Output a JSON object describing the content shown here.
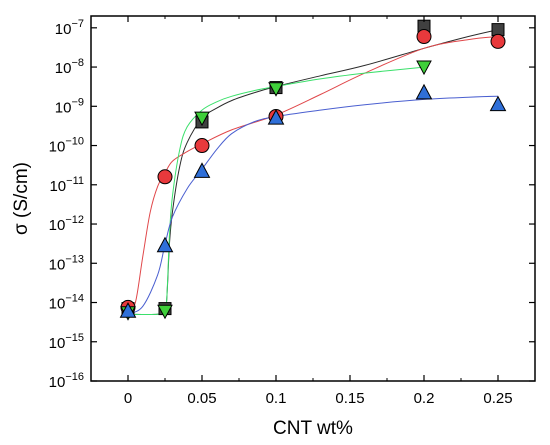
{
  "chart_data": {
    "type": "scatter",
    "title": "",
    "xlabel": "CNT wt%",
    "ylabel": "σ (S/cm)",
    "xlim": [
      -0.025,
      0.275
    ],
    "ylim": [
      1e-16,
      2e-07
    ],
    "y_scale": "log",
    "x_ticks": [
      0,
      0.05,
      0.1,
      0.15,
      0.2,
      0.25
    ],
    "x_tick_labels": [
      "0",
      "0.05",
      "0.1",
      "0.15",
      "0.2",
      "0.25"
    ],
    "y_ticks": [
      {
        "value": 1e-16,
        "base": "10",
        "exp": "−16"
      },
      {
        "value": 1e-15,
        "base": "10",
        "exp": "−15"
      },
      {
        "value": 1e-14,
        "base": "10",
        "exp": "−14"
      },
      {
        "value": 1e-13,
        "base": "10",
        "exp": "−13"
      },
      {
        "value": 1e-12,
        "base": "10",
        "exp": "−12"
      },
      {
        "value": 1e-11,
        "base": "10",
        "exp": "−11"
      },
      {
        "value": 1e-10,
        "base": "10",
        "exp": "−10"
      },
      {
        "value": 1e-09,
        "base": "10",
        "exp": "−9"
      },
      {
        "value": 1e-08,
        "base": "10",
        "exp": "−8"
      },
      {
        "value": 1e-07,
        "base": "10",
        "exp": "−7"
      }
    ],
    "grid": false,
    "legend": "none",
    "series": [
      {
        "marker": "square",
        "color": "#404040",
        "x": [
          0,
          0.025,
          0.05,
          0.1,
          0.2,
          0.25
        ],
        "y": [
          7e-15,
          7e-15,
          4e-10,
          3e-09,
          1.1e-07,
          9e-08
        ],
        "fit_color": "#2b2b2b",
        "fit_x": [
          0,
          0.02,
          0.024,
          0.026,
          0.028,
          0.03,
          0.035,
          0.04,
          0.05,
          0.06,
          0.07,
          0.085,
          0.1,
          0.13,
          0.16,
          0.2,
          0.23,
          0.25
        ],
        "fit_y": [
          5e-15,
          5e-15,
          6e-15,
          1e-14,
          3e-13,
          2e-12,
          3e-11,
          1.2e-10,
          5e-10,
          9e-10,
          1.4e-09,
          2.2e-09,
          3.2e-09,
          6e-09,
          1.1e-08,
          3e-08,
          6e-08,
          9e-08
        ]
      },
      {
        "marker": "circle",
        "color": "#e8393c",
        "x": [
          0,
          0.025,
          0.05,
          0.1,
          0.2,
          0.25
        ],
        "y": [
          7.5e-15,
          1.6e-11,
          1e-10,
          5.5e-10,
          6e-08,
          4.5e-08
        ],
        "fit_color": "#e0474a",
        "fit_x": [
          0,
          0.005,
          0.01,
          0.015,
          0.02,
          0.025,
          0.03,
          0.04,
          0.05,
          0.07,
          0.1,
          0.13,
          0.16,
          0.2,
          0.23,
          0.25
        ],
        "fit_y": [
          6e-15,
          1e-14,
          1.5e-13,
          2e-12,
          9e-12,
          2e-11,
          4e-11,
          7e-11,
          1.1e-10,
          2.5e-10,
          6e-10,
          2e-09,
          7e-09,
          3e-08,
          5e-08,
          6e-08
        ]
      },
      {
        "marker": "triangle-down",
        "color": "#3fcf3a",
        "x": [
          0,
          0.025,
          0.05,
          0.1,
          0.2
        ],
        "y": [
          5.5e-15,
          6e-15,
          5e-10,
          2.8e-09,
          1e-08
        ],
        "fit_color": "#3be06b",
        "fit_x": [
          0,
          0.02,
          0.024,
          0.026,
          0.028,
          0.03,
          0.035,
          0.04,
          0.05,
          0.06,
          0.07,
          0.085,
          0.1,
          0.13,
          0.16,
          0.2
        ],
        "fit_y": [
          5e-15,
          5e-15,
          6e-15,
          1e-14,
          5e-13,
          5e-12,
          8e-11,
          3e-10,
          8e-10,
          1.3e-09,
          1.8e-09,
          2.5e-09,
          3.2e-09,
          5e-09,
          7e-09,
          1e-08
        ]
      },
      {
        "marker": "triangle-up",
        "color": "#2f6fd8",
        "x": [
          0,
          0.025,
          0.05,
          0.1,
          0.2,
          0.25
        ],
        "y": [
          6e-15,
          2.8e-13,
          2.2e-11,
          5e-10,
          2.2e-09,
          1.1e-09
        ],
        "fit_color": "#4a5fd0",
        "fit_x": [
          0,
          0.01,
          0.02,
          0.025,
          0.03,
          0.04,
          0.05,
          0.06,
          0.07,
          0.085,
          0.1,
          0.13,
          0.16,
          0.2,
          0.23,
          0.25
        ],
        "fit_y": [
          5e-15,
          8e-15,
          5e-14,
          3e-13,
          1.5e-12,
          8e-12,
          2.5e-11,
          8e-11,
          2e-10,
          4e-10,
          5.5e-10,
          8e-10,
          1.1e-09,
          1.5e-09,
          1.7e-09,
          1.8e-09
        ]
      }
    ]
  }
}
